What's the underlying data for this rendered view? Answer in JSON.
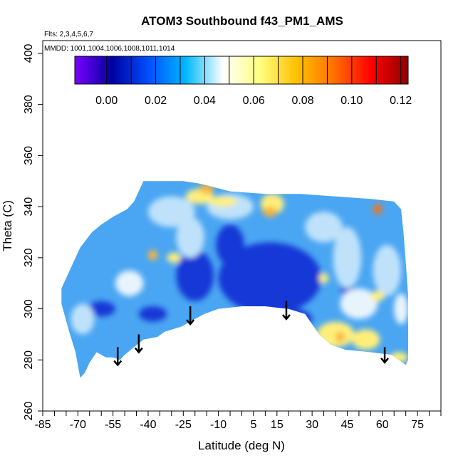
{
  "chart_data": {
    "type": "heatmap",
    "title": "ATOM3 Southbound f43_PM1_AMS",
    "subtitle_flights": "Flts: 2,3,4,5,6,7",
    "subtitle_dates": "MMDD: 1001,1004,1006,1008,1011,1014",
    "xlabel": "Latitude (deg N)",
    "ylabel": "Theta (C)",
    "xlim": [
      -85,
      85
    ],
    "ylim": [
      260,
      405
    ],
    "x_ticks": [
      -85,
      -70,
      -55,
      -40,
      -25,
      -10,
      5,
      15,
      30,
      45,
      60,
      75
    ],
    "x_tick_labels": [
      "-85",
      "-70",
      "-55",
      "-40",
      "-25",
      "-10",
      "5",
      "15",
      "30",
      "45",
      "60",
      "75"
    ],
    "y_ticks": [
      260,
      280,
      300,
      320,
      340,
      360,
      380,
      400
    ],
    "y_tick_labels": [
      "260",
      "280",
      "300",
      "320",
      "340",
      "360",
      "380",
      "400"
    ],
    "colorbar": {
      "range": [
        -0.013,
        0.123
      ],
      "ticks": [
        0.0,
        0.02,
        0.04,
        0.06,
        0.08,
        0.1,
        0.12
      ],
      "tick_labels": [
        "0.00",
        "0.02",
        "0.04",
        "0.06",
        "0.08",
        "0.10",
        "0.12"
      ],
      "colors": [
        "#7a00ff",
        "#0000a0",
        "#0050ff",
        "#00b8ff",
        "#ffffff",
        "#ffff80",
        "#ffc000",
        "#ff7000",
        "#ff0000",
        "#900000"
      ]
    },
    "field_colors": {
      "base": "#4aa6f2",
      "dark": "#1238d6",
      "light": "#bfe2fa",
      "pale": "#e8f4fc",
      "yellow": "#ffef7a",
      "orange": "#f7b43a",
      "red": "#f0761a"
    },
    "coverage_top_theta": [
      [
        -77,
        308
      ],
      [
        -72,
        318
      ],
      [
        -69,
        324
      ],
      [
        -64,
        330
      ],
      [
        -60,
        333
      ],
      [
        -55,
        336
      ],
      [
        -49,
        339
      ],
      [
        -46,
        342
      ],
      [
        -42,
        350
      ],
      [
        -25,
        350
      ],
      [
        -18,
        349
      ],
      [
        -5,
        346
      ],
      [
        10,
        345
      ],
      [
        25,
        345
      ],
      [
        40,
        344
      ],
      [
        55,
        343
      ],
      [
        65,
        342
      ],
      [
        68,
        339
      ],
      [
        69,
        330
      ],
      [
        70,
        318
      ],
      [
        71,
        305
      ]
    ],
    "coverage_bottom_theta": [
      [
        71,
        280
      ],
      [
        70,
        278
      ],
      [
        64,
        282
      ],
      [
        55,
        283
      ],
      [
        44,
        284
      ],
      [
        38,
        286
      ],
      [
        33,
        290
      ],
      [
        27,
        298
      ],
      [
        20,
        300
      ],
      [
        10,
        301
      ],
      [
        0,
        301
      ],
      [
        -10,
        300
      ],
      [
        -16,
        298
      ],
      [
        -20,
        296
      ],
      [
        -26,
        293
      ],
      [
        -33,
        291
      ],
      [
        -36,
        289
      ],
      [
        -42,
        288
      ],
      [
        -46,
        285
      ],
      [
        -50,
        282
      ],
      [
        -52,
        280
      ],
      [
        -55,
        281
      ],
      [
        -58,
        281
      ],
      [
        -62,
        283
      ],
      [
        -65,
        279
      ],
      [
        -67,
        275
      ],
      [
        -69,
        273
      ],
      [
        -71,
        283
      ],
      [
        -74,
        292
      ],
      [
        -77,
        302
      ]
    ],
    "anomalies": [
      {
        "lat": -20,
        "theta": 313,
        "color": "dark",
        "rx": 8,
        "ry": 10
      },
      {
        "lat": 12,
        "theta": 312,
        "color": "dark",
        "rx": 22,
        "ry": 14
      },
      {
        "lat": 22,
        "theta": 296,
        "color": "dark",
        "rx": 8,
        "ry": 4
      },
      {
        "lat": -5,
        "theta": 325,
        "color": "dark",
        "rx": 6,
        "ry": 8
      },
      {
        "lat": 45,
        "theta": 310,
        "color": "dark",
        "rx": 3,
        "ry": 6
      },
      {
        "lat": -60,
        "theta": 300,
        "color": "dark",
        "rx": 6,
        "ry": 3
      },
      {
        "lat": -38,
        "theta": 298,
        "color": "dark",
        "rx": 6,
        "ry": 3
      },
      {
        "lat": -30,
        "theta": 338,
        "color": "light",
        "rx": 10,
        "ry": 6
      },
      {
        "lat": -22,
        "theta": 328,
        "color": "light",
        "rx": 6,
        "ry": 8
      },
      {
        "lat": -5,
        "theta": 340,
        "color": "light",
        "rx": 10,
        "ry": 5
      },
      {
        "lat": 35,
        "theta": 332,
        "color": "light",
        "rx": 8,
        "ry": 6
      },
      {
        "lat": 45,
        "theta": 320,
        "color": "light",
        "rx": 6,
        "ry": 12
      },
      {
        "lat": 50,
        "theta": 302,
        "color": "pale",
        "rx": 8,
        "ry": 6
      },
      {
        "lat": 62,
        "theta": 315,
        "color": "light",
        "rx": 6,
        "ry": 10
      },
      {
        "lat": 68,
        "theta": 300,
        "color": "pale",
        "rx": 3,
        "ry": 6
      },
      {
        "lat": -68,
        "theta": 296,
        "color": "light",
        "rx": 5,
        "ry": 6
      },
      {
        "lat": -48,
        "theta": 310,
        "color": "pale",
        "rx": 6,
        "ry": 5
      },
      {
        "lat": -18,
        "theta": 344,
        "color": "yellow",
        "rx": 6,
        "ry": 3
      },
      {
        "lat": -15,
        "theta": 347,
        "color": "orange",
        "rx": 3,
        "ry": 2
      },
      {
        "lat": -8,
        "theta": 342,
        "color": "yellow",
        "rx": 6,
        "ry": 2
      },
      {
        "lat": 13,
        "theta": 341,
        "color": "yellow",
        "rx": 5,
        "ry": 4
      },
      {
        "lat": 12,
        "theta": 338,
        "color": "orange",
        "rx": 3,
        "ry": 2
      },
      {
        "lat": -29,
        "theta": 320,
        "color": "yellow",
        "rx": 3,
        "ry": 2
      },
      {
        "lat": -38,
        "theta": 321,
        "color": "orange",
        "rx": 2,
        "ry": 2
      },
      {
        "lat": 58,
        "theta": 339,
        "color": "red",
        "rx": 2,
        "ry": 2
      },
      {
        "lat": 35,
        "theta": 312,
        "color": "yellow",
        "rx": 2,
        "ry": 2
      },
      {
        "lat": 40,
        "theta": 290,
        "color": "yellow",
        "rx": 8,
        "ry": 5
      },
      {
        "lat": 53,
        "theta": 288,
        "color": "yellow",
        "rx": 6,
        "ry": 4
      },
      {
        "lat": 42,
        "theta": 289,
        "color": "orange",
        "rx": 2,
        "ry": 2
      },
      {
        "lat": 58,
        "theta": 305,
        "color": "yellow",
        "rx": 3,
        "ry": 2
      },
      {
        "lat": 67,
        "theta": 281,
        "color": "yellow",
        "rx": 4,
        "ry": 2
      }
    ],
    "arrows": [
      {
        "lat": -53,
        "theta_top": 285,
        "theta_bottom": 278
      },
      {
        "lat": -44,
        "theta_top": 290,
        "theta_bottom": 283
      },
      {
        "lat": -22,
        "theta_top": 301,
        "theta_bottom": 294
      },
      {
        "lat": 19,
        "theta_top": 303,
        "theta_bottom": 296
      },
      {
        "lat": 61,
        "theta_top": 285,
        "theta_bottom": 279
      }
    ],
    "grid": false,
    "legend": "colorbar-top-inside"
  }
}
